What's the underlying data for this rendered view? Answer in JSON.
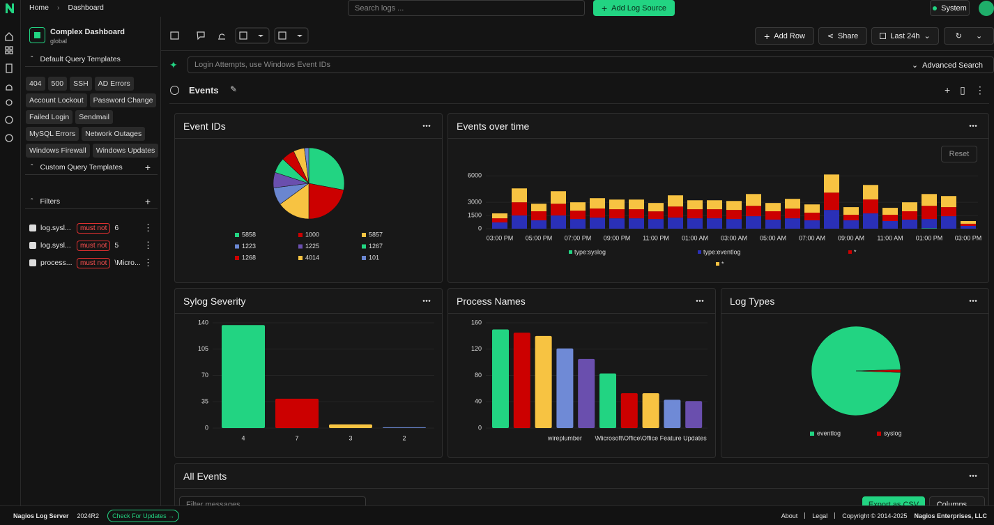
{
  "topbar": {
    "breadcrumb": [
      "Home",
      "Dashboard"
    ],
    "search_placeholder": "Search logs ...",
    "add_log_source": "Add Log Source",
    "system": "System"
  },
  "sidebar": {
    "dashboard_name": "Complex Dashboard",
    "dashboard_scope": "global",
    "default_templates_title": "Default Query Templates",
    "templates": [
      "404",
      "500",
      "SSH",
      "AD Errors",
      "Account Lockout",
      "Password Change",
      "Failed Login",
      "Sendmail",
      "MySQL Errors",
      "Network Outages",
      "Windows Firewall",
      "Windows Updates"
    ],
    "custom_templates_title": "Custom Query Templates",
    "filters_title": "Filters",
    "filters": [
      {
        "field": "log.sysl...",
        "op": "must not",
        "value": "6"
      },
      {
        "field": "log.sysl...",
        "op": "must not",
        "value": "5"
      },
      {
        "field": "process...",
        "op": "must not",
        "value": "\\Micro..."
      }
    ]
  },
  "toolbar": {
    "add_row": "Add Row",
    "share": "Share",
    "time_range": "Last 24h"
  },
  "query": {
    "placeholder": "Login Attempts, use Windows Event IDs",
    "advanced": "Advanced Search"
  },
  "section": {
    "title": "Events"
  },
  "charts": {
    "event_ids": {
      "type": "pie",
      "title": "Event IDs",
      "categories": [
        "5858",
        "1000",
        "5857",
        "1223",
        "1225",
        "1267",
        "1268",
        "4014",
        "101"
      ],
      "values": [
        28,
        22,
        15,
        8,
        7,
        7,
        6,
        5,
        2
      ],
      "colors": [
        "#22d482",
        "#cc0000",
        "#f7c342",
        "#6a86d0",
        "#6a4fae",
        "#22d482",
        "#cc0000",
        "#f7c342",
        "#6a86d0"
      ]
    },
    "events_over_time": {
      "type": "stacked-bar",
      "title": "Events over time",
      "reset": "Reset",
      "categories": [
        "03:00 PM",
        null,
        "05:00 PM",
        null,
        "07:00 PM",
        null,
        "09:00 PM",
        null,
        "11:00 PM",
        null,
        "01:00 AM",
        null,
        "03:00 AM",
        null,
        "05:00 AM",
        null,
        "07:00 AM",
        null,
        "09:00 AM",
        null,
        "11:00 AM",
        null,
        "01:00 PM",
        null,
        "03:00 PM"
      ],
      "series": [
        {
          "name": "type:syslog",
          "color": "#22d482",
          "values": [
            0,
            0,
            0,
            0,
            0,
            0,
            0,
            0,
            0,
            0,
            0,
            0,
            0,
            0,
            0,
            0,
            0,
            0,
            0,
            0,
            0,
            0,
            50,
            0,
            0
          ]
        },
        {
          "name": "type:eventlog",
          "color": "#2a30b8",
          "values": [
            710,
            1500,
            950,
            1500,
            1100,
            1260,
            1180,
            1180,
            1100,
            1260,
            1180,
            1180,
            1100,
            1420,
            1030,
            1180,
            950,
            2130,
            950,
            1740,
            870,
            1030,
            1050,
            1420,
            320
          ]
        },
        {
          "name": "*",
          "color": "#cc0000",
          "values": [
            470,
            1500,
            1030,
            1340,
            950,
            1030,
            1030,
            1030,
            870,
            1260,
            1030,
            1030,
            1030,
            1180,
            950,
            1100,
            870,
            1970,
            630,
            1580,
            710,
            950,
            1500,
            1030,
            240
          ]
        },
        {
          "name": "*",
          "color": "#f7c342",
          "values": [
            560,
            1580,
            860,
            1420,
            950,
            1180,
            1100,
            1100,
            950,
            1270,
            1020,
            1020,
            1020,
            1340,
            940,
            1110,
            940,
            2060,
            870,
            1650,
            790,
            1020,
            1340,
            1260,
            310
          ]
        }
      ],
      "ylim": [
        0,
        6500
      ],
      "yticks": [
        0,
        1500,
        3000,
        6000
      ],
      "grid": true
    },
    "severity": {
      "type": "bar",
      "title": "Sylog Severity",
      "categories": [
        "4",
        "7",
        "3",
        "2"
      ],
      "values": [
        137,
        39,
        5,
        1
      ],
      "colors": [
        "#22d482",
        "#cc0000",
        "#f7c342",
        "#6a86d0"
      ],
      "ylim": [
        0,
        140
      ],
      "yticks": [
        0,
        35,
        70,
        105,
        140
      ],
      "grid": true
    },
    "process_names": {
      "type": "bar",
      "title": "Process Names",
      "categories": [
        null,
        null,
        null,
        "wireplumber",
        null,
        null,
        null,
        "\\Microsoft\\Office\\Office Feature Updates",
        null,
        null
      ],
      "values": [
        150,
        145,
        140,
        121,
        105,
        83,
        53,
        53,
        43,
        41
      ],
      "colors": [
        "#22d482",
        "#cc0000",
        "#f7c342",
        "#6f8ad6",
        "#6a4fae",
        "#22d482",
        "#cc0000",
        "#f7c342",
        "#6f8ad6",
        "#6a4fae"
      ],
      "ylim": [
        0,
        160
      ],
      "yticks": [
        0,
        40,
        80,
        120,
        160
      ],
      "grid": true
    },
    "log_types": {
      "type": "pie",
      "title": "Log Types",
      "categories": [
        "eventlog",
        "syslog"
      ],
      "values": [
        99,
        1
      ],
      "colors": [
        "#22d482",
        "#cc0000"
      ]
    }
  },
  "all_events": {
    "title": "All Events",
    "filter_placeholder": "Filter messages...",
    "export": "Export as CSV",
    "columns": "Columns"
  },
  "footer": {
    "product": "Nagios Log Server",
    "version": "2024R2",
    "check_updates": "Check For Updates",
    "about": "About",
    "legal": "Legal",
    "copyright": "Copyright © 2014-2025",
    "company": "Nagios Enterprises, LLC"
  }
}
